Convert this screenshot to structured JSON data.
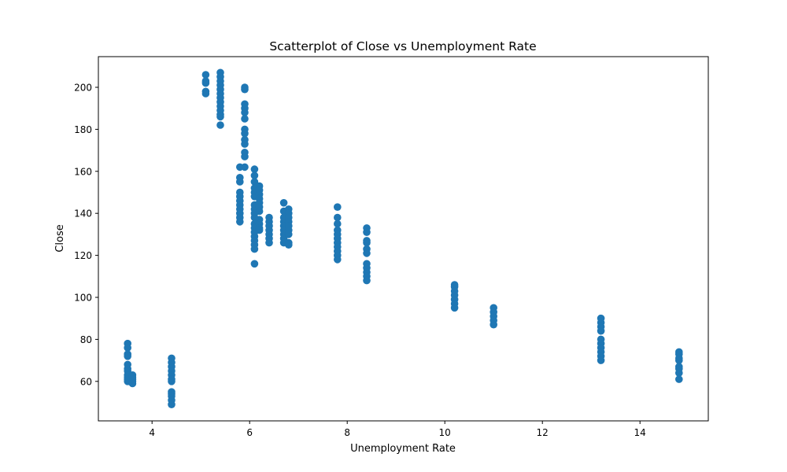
{
  "chart_data": {
    "type": "scatter",
    "title": "Scatterplot of Close vs Unemployment Rate",
    "xlabel": "Unemployment Rate",
    "ylabel": "Close",
    "xlim": [
      2.9,
      15.4
    ],
    "ylim": [
      41.2,
      214.6
    ],
    "xticks": [
      4,
      6,
      8,
      10,
      12,
      14
    ],
    "yticks": [
      60,
      80,
      100,
      120,
      140,
      160,
      180,
      200
    ],
    "grid": false,
    "marker_color": "#1f77b4",
    "series": [
      {
        "points": [
          [
            3.5,
            78
          ],
          [
            3.5,
            76
          ],
          [
            3.5,
            73
          ],
          [
            3.5,
            72
          ],
          [
            3.5,
            68
          ],
          [
            3.5,
            66
          ],
          [
            3.5,
            65
          ],
          [
            3.5,
            63
          ],
          [
            3.5,
            62
          ],
          [
            3.5,
            61
          ],
          [
            3.5,
            60
          ],
          [
            3.6,
            63
          ],
          [
            3.6,
            62
          ],
          [
            3.6,
            61
          ],
          [
            3.6,
            60
          ],
          [
            3.6,
            59
          ],
          [
            4.4,
            71
          ],
          [
            4.4,
            69
          ],
          [
            4.4,
            67
          ],
          [
            4.4,
            65
          ],
          [
            4.4,
            63
          ],
          [
            4.4,
            61
          ],
          [
            4.4,
            60
          ],
          [
            4.4,
            55
          ],
          [
            4.4,
            54
          ],
          [
            4.4,
            53
          ],
          [
            4.4,
            51
          ],
          [
            4.4,
            49
          ],
          [
            5.1,
            206
          ],
          [
            5.1,
            203
          ],
          [
            5.1,
            202
          ],
          [
            5.1,
            198
          ],
          [
            5.1,
            197
          ],
          [
            5.4,
            207
          ],
          [
            5.4,
            205
          ],
          [
            5.4,
            203
          ],
          [
            5.4,
            201
          ],
          [
            5.4,
            199
          ],
          [
            5.4,
            197
          ],
          [
            5.4,
            195
          ],
          [
            5.4,
            193
          ],
          [
            5.4,
            191
          ],
          [
            5.4,
            189
          ],
          [
            5.4,
            187
          ],
          [
            5.4,
            186
          ],
          [
            5.4,
            182
          ],
          [
            5.8,
            162
          ],
          [
            5.8,
            157
          ],
          [
            5.8,
            155
          ],
          [
            5.8,
            150
          ],
          [
            5.8,
            148
          ],
          [
            5.8,
            146
          ],
          [
            5.8,
            144
          ],
          [
            5.8,
            142
          ],
          [
            5.8,
            140
          ],
          [
            5.8,
            138
          ],
          [
            5.8,
            136
          ],
          [
            5.9,
            200
          ],
          [
            5.9,
            199
          ],
          [
            5.9,
            192
          ],
          [
            5.9,
            190
          ],
          [
            5.9,
            188
          ],
          [
            5.9,
            185
          ],
          [
            5.9,
            180
          ],
          [
            5.9,
            178
          ],
          [
            5.9,
            175
          ],
          [
            5.9,
            173
          ],
          [
            5.9,
            169
          ],
          [
            5.9,
            167
          ],
          [
            5.9,
            162
          ],
          [
            6.1,
            161
          ],
          [
            6.1,
            158
          ],
          [
            6.1,
            155
          ],
          [
            6.1,
            152
          ],
          [
            6.1,
            150
          ],
          [
            6.1,
            148
          ],
          [
            6.1,
            144
          ],
          [
            6.1,
            142
          ],
          [
            6.1,
            140
          ],
          [
            6.1,
            138
          ],
          [
            6.1,
            135
          ],
          [
            6.1,
            133
          ],
          [
            6.1,
            131
          ],
          [
            6.1,
            129
          ],
          [
            6.1,
            127
          ],
          [
            6.1,
            125
          ],
          [
            6.1,
            123
          ],
          [
            6.1,
            116
          ],
          [
            6.2,
            153
          ],
          [
            6.2,
            151
          ],
          [
            6.2,
            149
          ],
          [
            6.2,
            147
          ],
          [
            6.2,
            145
          ],
          [
            6.2,
            143
          ],
          [
            6.2,
            141
          ],
          [
            6.2,
            137
          ],
          [
            6.2,
            135
          ],
          [
            6.2,
            133
          ],
          [
            6.2,
            132
          ],
          [
            6.4,
            138
          ],
          [
            6.4,
            136
          ],
          [
            6.4,
            134
          ],
          [
            6.4,
            132
          ],
          [
            6.4,
            130
          ],
          [
            6.4,
            128
          ],
          [
            6.4,
            126
          ],
          [
            6.7,
            145
          ],
          [
            6.7,
            141
          ],
          [
            6.7,
            138
          ],
          [
            6.7,
            136
          ],
          [
            6.7,
            134
          ],
          [
            6.7,
            132
          ],
          [
            6.7,
            130
          ],
          [
            6.7,
            128
          ],
          [
            6.7,
            126
          ],
          [
            6.8,
            142
          ],
          [
            6.8,
            140
          ],
          [
            6.8,
            138
          ],
          [
            6.8,
            136
          ],
          [
            6.8,
            134
          ],
          [
            6.8,
            132
          ],
          [
            6.8,
            130
          ],
          [
            6.8,
            126
          ],
          [
            6.8,
            125
          ],
          [
            7.8,
            143
          ],
          [
            7.8,
            138
          ],
          [
            7.8,
            135
          ],
          [
            7.8,
            132
          ],
          [
            7.8,
            130
          ],
          [
            7.8,
            128
          ],
          [
            7.8,
            126
          ],
          [
            7.8,
            124
          ],
          [
            7.8,
            122
          ],
          [
            7.8,
            120
          ],
          [
            7.8,
            118
          ],
          [
            8.4,
            133
          ],
          [
            8.4,
            131
          ],
          [
            8.4,
            127
          ],
          [
            8.4,
            126
          ],
          [
            8.4,
            123
          ],
          [
            8.4,
            121
          ],
          [
            8.4,
            116
          ],
          [
            8.4,
            114
          ],
          [
            8.4,
            112
          ],
          [
            8.4,
            110
          ],
          [
            8.4,
            108
          ],
          [
            10.2,
            106
          ],
          [
            10.2,
            105
          ],
          [
            10.2,
            103
          ],
          [
            10.2,
            101
          ],
          [
            10.2,
            99
          ],
          [
            10.2,
            97
          ],
          [
            10.2,
            95
          ],
          [
            11.0,
            95
          ],
          [
            11.0,
            93
          ],
          [
            11.0,
            91
          ],
          [
            11.0,
            89
          ],
          [
            11.0,
            87
          ],
          [
            13.2,
            90
          ],
          [
            13.2,
            88
          ],
          [
            13.2,
            86
          ],
          [
            13.2,
            84
          ],
          [
            13.2,
            80
          ],
          [
            13.2,
            78
          ],
          [
            13.2,
            76
          ],
          [
            13.2,
            74
          ],
          [
            13.2,
            72
          ],
          [
            13.2,
            70
          ],
          [
            14.8,
            74
          ],
          [
            14.8,
            73
          ],
          [
            14.8,
            71
          ],
          [
            14.8,
            70
          ],
          [
            14.8,
            67
          ],
          [
            14.8,
            66
          ],
          [
            14.8,
            64
          ],
          [
            14.8,
            61
          ]
        ]
      }
    ]
  }
}
